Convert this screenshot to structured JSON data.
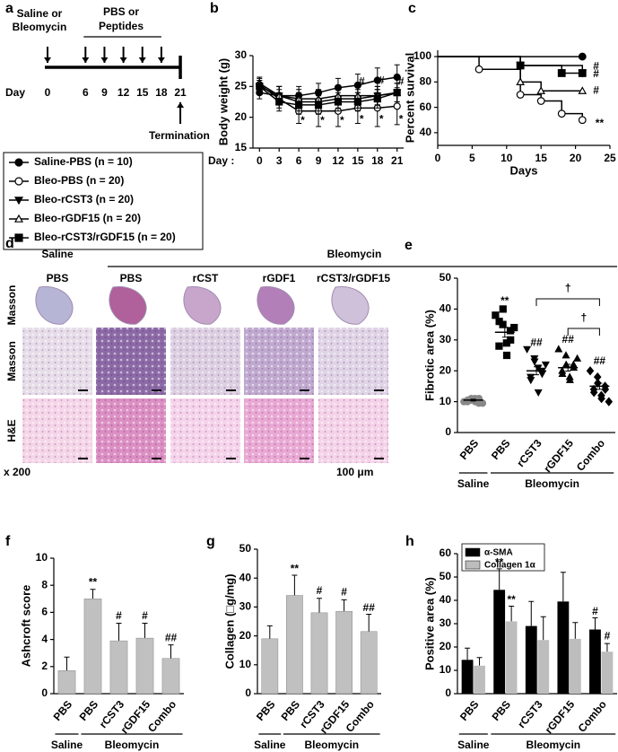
{
  "panel_labels": [
    "a",
    "b",
    "c",
    "d",
    "e",
    "f",
    "g",
    "h"
  ],
  "timeline": {
    "start_label": [
      "Saline or",
      "Bleomycin"
    ],
    "treatment_label": [
      "PBS or",
      "Peptides"
    ],
    "day_label": "Day",
    "days": [
      0,
      6,
      9,
      12,
      15,
      18,
      21
    ],
    "end_label": "Termination"
  },
  "histology": {
    "saline_header": [
      "Saline",
      "PBS"
    ],
    "bleomycin_header": "Bleomycin",
    "columns": [
      "PBS",
      "rCST",
      "rGDF1",
      "rCST3/rGDF15"
    ],
    "rows": [
      "Masson",
      "Masson",
      "H&E"
    ],
    "magnification": "x 200",
    "scale_bar": "100 μm"
  },
  "chart_data": [
    {
      "type": "line",
      "x": [
        0,
        3,
        6,
        9,
        12,
        15,
        18,
        21
      ],
      "xlabel": "Day :",
      "ylabel": "Body weight (g)",
      "xlim": [
        -1,
        22
      ],
      "ylim": [
        15,
        30
      ],
      "xticks": [
        0,
        3,
        6,
        9,
        12,
        15,
        18,
        21
      ],
      "yticks": [
        15,
        20,
        25,
        30
      ],
      "series": [
        {
          "name": "Saline-PBS (n = 10)",
          "color": "#000000",
          "marker": "circle",
          "filled": true,
          "values": [
            24,
            23.5,
            23.5,
            24,
            24.8,
            25.2,
            26,
            26.5
          ],
          "errors": [
            1,
            1.5,
            1.5,
            1.5,
            1.5,
            1.8,
            2,
            2
          ]
        },
        {
          "name": "Bleo-PBS (n = 20)",
          "color": "#000000",
          "marker": "circle",
          "filled": false,
          "values": [
            25.3,
            23,
            21,
            21,
            21,
            21.5,
            21.5,
            21.8
          ],
          "errors": [
            1,
            1.5,
            2,
            2.5,
            2.5,
            2.5,
            3,
            3
          ]
        },
        {
          "name": "Bleo-rCST3 (n = 20)",
          "color": "#000000",
          "marker": "triangle-down",
          "filled": true,
          "values": [
            25,
            23.5,
            22.5,
            22.5,
            23,
            23,
            23.5,
            24
          ],
          "errors": [
            1,
            1.5,
            1.5,
            1.5,
            1.5,
            1.5,
            1.5,
            1.5
          ]
        },
        {
          "name": "Bleo-rGDF15 (n = 20)",
          "color": "#000000",
          "marker": "triangle-up",
          "filled": false,
          "values": [
            25.5,
            23.5,
            23,
            23,
            23.5,
            23.5,
            23.5,
            24
          ],
          "errors": [
            1,
            1.5,
            1.5,
            1.5,
            1.5,
            1.5,
            1.5,
            1.5
          ]
        },
        {
          "name": "Bleo-rCST3/rGDF15 (n = 20)",
          "color": "#000000",
          "marker": "square",
          "filled": true,
          "values": [
            25,
            22.5,
            22,
            22,
            22.5,
            22.5,
            23,
            24
          ],
          "errors": [
            1,
            1.5,
            1.5,
            1.5,
            1.5,
            1.5,
            1.5,
            1.5
          ]
        }
      ],
      "annotations": [
        {
          "text": "*",
          "x": 6.6,
          "y": 19.4
        },
        {
          "text": "*",
          "x": 9.6,
          "y": 19.4
        },
        {
          "text": "*",
          "x": 12.6,
          "y": 19.4
        },
        {
          "text": "*",
          "x": 15.6,
          "y": 19.6
        },
        {
          "text": "*",
          "x": 18.6,
          "y": 19.6
        },
        {
          "text": "*",
          "x": 21.6,
          "y": 19.6
        },
        {
          "text": "#",
          "x": 15.6,
          "y": 25.7
        },
        {
          "text": "#",
          "x": 18.6,
          "y": 25.9
        },
        {
          "text": "#",
          "x": 21.6,
          "y": 25.7
        }
      ]
    },
    {
      "type": "step",
      "xlabel": "Days",
      "ylabel": "Percent survival",
      "xlim": [
        0,
        25
      ],
      "ylim": [
        30,
        105
      ],
      "xticks": [
        0,
        5,
        10,
        15,
        20,
        25
      ],
      "yticks": [
        40,
        60,
        80,
        100
      ],
      "series": [
        {
          "color": "#000000",
          "marker": "circle",
          "filled": true,
          "x": [
            0,
            21
          ],
          "values": [
            100,
            100
          ]
        },
        {
          "color": "#000000",
          "marker": "circle",
          "filled": false,
          "x": [
            0,
            6,
            12,
            15,
            18,
            21
          ],
          "values": [
            100,
            90,
            70,
            65,
            55,
            50
          ]
        },
        {
          "color": "#000000",
          "marker": "triangle-down",
          "filled": true,
          "x": [
            0,
            12,
            21
          ],
          "values": [
            100,
            93,
            87
          ]
        },
        {
          "color": "#000000",
          "marker": "triangle-up",
          "filled": false,
          "x": [
            0,
            12,
            15,
            21
          ],
          "values": [
            100,
            80,
            73,
            73
          ]
        },
        {
          "color": "#000000",
          "marker": "square",
          "filled": true,
          "x": [
            0,
            12,
            18,
            21
          ],
          "values": [
            100,
            93,
            87,
            87
          ]
        }
      ],
      "annotations": [
        {
          "text": "#",
          "x": 23,
          "y": 92
        },
        {
          "text": "#",
          "x": 23,
          "y": 86
        },
        {
          "text": "#",
          "x": 23,
          "y": 73
        },
        {
          "text": "**",
          "x": 23.5,
          "y": 47
        }
      ]
    },
    {
      "type": "dot",
      "categories": [
        "PBS",
        "PBS",
        "rCST3",
        "rGDF15",
        "Combo"
      ],
      "groups": [
        "Saline",
        "Bleomycin"
      ],
      "ylabel": "Fibrotic area (%)",
      "ylim": [
        0,
        50
      ],
      "yticks": [
        0,
        10,
        20,
        30,
        40,
        50
      ],
      "points": [
        [
          10,
          11,
          10.5,
          9.5,
          11,
          10,
          10.5,
          11,
          10,
          9.5
        ],
        [
          38,
          35,
          40,
          33,
          30,
          28,
          36,
          29,
          25,
          34
        ],
        [
          27,
          24,
          23,
          20,
          19,
          18,
          17,
          21,
          13,
          22
        ],
        [
          27,
          25,
          22,
          22,
          21,
          20,
          19,
          18,
          17,
          24
        ],
        [
          20,
          18,
          16,
          15,
          14,
          14,
          13,
          12,
          11,
          10
        ]
      ],
      "values": [
        10.5,
        32.5,
        20,
        21,
        15
      ],
      "errors": [
        0.3,
        1.6,
        1.3,
        1.1,
        1
      ],
      "markers": [
        "circle",
        "square",
        "triangle-down",
        "triangle-up",
        "diamond"
      ],
      "colors": [
        "#888888",
        "#000000",
        "#000000",
        "#000000",
        "#000000"
      ],
      "annotations": [
        {
          "text": "**",
          "x": 1,
          "y": 42.5
        },
        {
          "text": "##",
          "x": 2,
          "y": 29
        },
        {
          "text": "##",
          "x": 3,
          "y": 30
        },
        {
          "text": "##",
          "x": 4,
          "y": 23
        },
        {
          "text": "†",
          "x": 3,
          "y": 46.5
        },
        {
          "text": "†",
          "x": 3.5,
          "y": 37
        }
      ]
    },
    {
      "type": "bar",
      "categories": [
        "PBS",
        "PBS",
        "rCST3",
        "rGDF15",
        "Combo"
      ],
      "groups": [
        "Saline",
        "Bleomycin"
      ],
      "ylabel": "Ashcroft score",
      "ylim": [
        0,
        10
      ],
      "yticks": [
        0,
        2,
        4,
        6,
        8,
        10
      ],
      "color": "#c0c0c0",
      "values": [
        1.7,
        7,
        3.9,
        4.1,
        2.6
      ],
      "errors": [
        1,
        0.7,
        1.3,
        1.1,
        1
      ],
      "annotations": [
        {
          "text": "**",
          "x": 1,
          "y": 8.2
        },
        {
          "text": "#",
          "x": 2,
          "y": 5.7
        },
        {
          "text": "#",
          "x": 3,
          "y": 5.7
        },
        {
          "text": "##",
          "x": 4,
          "y": 4.1
        }
      ]
    },
    {
      "type": "bar",
      "categories": [
        "PBS",
        "PBS",
        "rCST3",
        "rGDF15",
        "Combo"
      ],
      "groups": [
        "Saline",
        "Bleomycin"
      ],
      "ylabel": "Collagen (□g/mg)",
      "ylim": [
        0,
        50
      ],
      "yticks": [
        0,
        10,
        20,
        30,
        40,
        50
      ],
      "color": "#c0c0c0",
      "values": [
        19,
        34,
        28,
        28.5,
        21.5
      ],
      "errors": [
        4.5,
        7,
        5,
        4,
        6
      ],
      "annotations": [
        {
          "text": "**",
          "x": 1,
          "y": 43
        },
        {
          "text": "#",
          "x": 2,
          "y": 35.5
        },
        {
          "text": "#",
          "x": 3,
          "y": 35
        },
        {
          "text": "##",
          "x": 4,
          "y": 29.5
        }
      ]
    },
    {
      "type": "grouped_bar",
      "categories": [
        "PBS",
        "PBS",
        "rCST3",
        "rGDF15",
        "Combo"
      ],
      "groups": [
        "Saline",
        "Bleomycin"
      ],
      "ylabel": "Positive area (%)",
      "ylim": [
        0,
        60
      ],
      "yticks": [
        0,
        10,
        20,
        30,
        40,
        50,
        60
      ],
      "series": [
        {
          "name": "α-SMA",
          "color": "#000000",
          "values": [
            14.5,
            44.5,
            29,
            39.5,
            27.5
          ],
          "errors": [
            5,
            9,
            10.5,
            12.5,
            5
          ]
        },
        {
          "name": "Collagen 1α",
          "color": "#bdbdbd",
          "values": [
            12,
            31,
            23,
            23.5,
            18
          ],
          "errors": [
            3.5,
            6.5,
            10,
            7,
            3.5
          ]
        }
      ],
      "annotations": [
        {
          "text": "**",
          "x": 1,
          "series": 0,
          "y": 56
        },
        {
          "text": "**",
          "x": 1,
          "series": 1,
          "y": 40
        },
        {
          "text": "#",
          "x": 4,
          "series": 0,
          "y": 35
        },
        {
          "text": "#",
          "x": 4,
          "series": 1,
          "y": 24.5
        }
      ]
    }
  ]
}
